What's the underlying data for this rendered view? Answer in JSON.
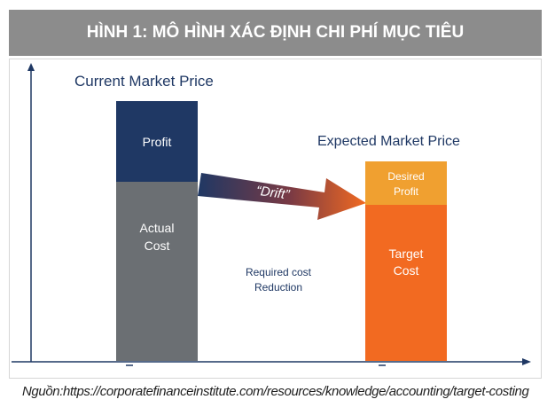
{
  "header": {
    "title": "HÌNH 1: MÔ HÌNH XÁC ĐỊNH CHI PHÍ MỤC TIÊU"
  },
  "diagram": {
    "current_label": "Current Market Price",
    "expected_label": "Expected Market Price",
    "profit_label": "Profit",
    "actual_cost_line1": "Actual",
    "actual_cost_line2": "Cost",
    "drift_label": "“Drift”",
    "required_line1": "Required cost",
    "required_line2": "Reduction",
    "desired_line1": "Desired",
    "desired_line2": "Profit",
    "target_line1": "Target",
    "target_line2": "Cost",
    "colors": {
      "profit": "#1f3864",
      "actual_cost": "#6b6f73",
      "desired_profit": "#f0a030",
      "target_cost": "#f26a21",
      "label_text": "#1f3864",
      "axis": "#1f3864"
    }
  },
  "footer": {
    "source": "Nguồn:https://corporatefinanceinstitute.com/resources/knowledge/accounting/target-costing"
  }
}
